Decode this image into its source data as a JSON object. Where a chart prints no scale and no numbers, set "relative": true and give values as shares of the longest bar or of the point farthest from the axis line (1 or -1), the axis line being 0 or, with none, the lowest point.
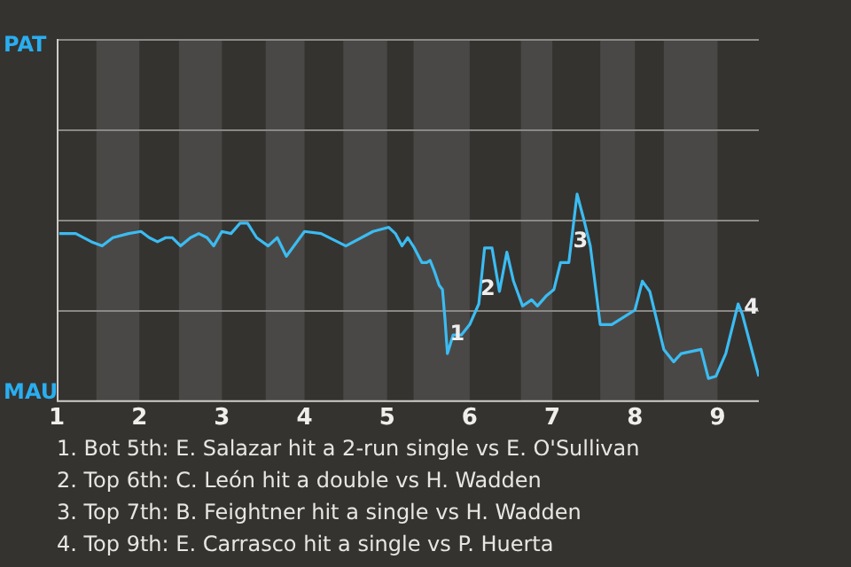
{
  "chart_data": {
    "type": "line",
    "relative": true,
    "xlim": [
      1,
      9.5
    ],
    "xticks": [
      1,
      2,
      3,
      4,
      5,
      6,
      7,
      8,
      9
    ],
    "ref_lines": [
      {
        "axis": "y",
        "value": 0.44,
        "color": "#8b8987"
      },
      {
        "axis": "y",
        "value": 0.88,
        "color": "#8b8987"
      },
      {
        "axis": "y",
        "value": 1.31,
        "color": "#8b8987"
      }
    ],
    "legend": false,
    "marker": "none",
    "line_style": "solid",
    "bands": [
      {
        "axis": "x",
        "from": 1.48,
        "to": 2,
        "color": "#4a4846"
      },
      {
        "axis": "x",
        "from": 2.48,
        "to": 3,
        "color": "#4a4846"
      },
      {
        "axis": "x",
        "from": 3.53,
        "to": 4,
        "color": "#4a4846"
      },
      {
        "axis": "x",
        "from": 4.47,
        "to": 5,
        "color": "#4a4846"
      },
      {
        "axis": "x",
        "from": 5.32,
        "to": 6,
        "color": "#4a4846"
      },
      {
        "axis": "x",
        "from": 6.62,
        "to": 7,
        "color": "#4a4846"
      },
      {
        "axis": "x",
        "from": 7.58,
        "to": 8,
        "color": "#4a4846"
      },
      {
        "axis": "x",
        "from": 8.35,
        "to": 9,
        "color": "#4a4846"
      }
    ],
    "series": [
      {
        "color": "#3bbcf2",
        "x": [
          1.03,
          1.23,
          1.42,
          1.55,
          1.68,
          1.87,
          2.02,
          2.12,
          2.22,
          2.32,
          2.4,
          2.5,
          2.62,
          2.72,
          2.82,
          2.9,
          3.0,
          3.11,
          3.22,
          3.31,
          3.42,
          3.56,
          3.67,
          3.78,
          4.0,
          4.2,
          4.5,
          4.83,
          5.02,
          5.1,
          5.18,
          5.25,
          5.33,
          5.42,
          5.48,
          5.52,
          5.57,
          5.63,
          5.67,
          5.7,
          5.73,
          5.8,
          5.9,
          6.0,
          6.11,
          6.18,
          6.27,
          6.36,
          6.45,
          6.53,
          6.64,
          6.75,
          6.82,
          6.93,
          7.02,
          7.1,
          7.2,
          7.3,
          7.38,
          7.46,
          7.58,
          7.72,
          7.84,
          8.0,
          8.09,
          8.18,
          8.35,
          8.47,
          8.56,
          8.8,
          8.89,
          8.98,
          9.1,
          9.25,
          9.3,
          9.5
        ],
        "values": [
          0.81,
          0.81,
          0.77,
          0.75,
          0.79,
          0.81,
          0.82,
          0.79,
          0.77,
          0.79,
          0.79,
          0.75,
          0.79,
          0.81,
          0.79,
          0.75,
          0.82,
          0.81,
          0.86,
          0.86,
          0.79,
          0.75,
          0.79,
          0.7,
          0.82,
          0.81,
          0.75,
          0.82,
          0.84,
          0.81,
          0.75,
          0.79,
          0.74,
          0.67,
          0.67,
          0.68,
          0.63,
          0.56,
          0.54,
          0.4,
          0.23,
          0.32,
          0.32,
          0.37,
          0.47,
          0.74,
          0.74,
          0.53,
          0.72,
          0.58,
          0.46,
          0.49,
          0.46,
          0.51,
          0.54,
          0.67,
          0.67,
          1,
          0.88,
          0.75,
          0.37,
          0.37,
          0.4,
          0.44,
          0.58,
          0.53,
          0.25,
          0.19,
          0.23,
          0.25,
          0.11,
          0.12,
          0.23,
          0.47,
          0.42,
          0.12
        ]
      }
    ],
    "annotations": [
      {
        "text": "1",
        "x": 5.85,
        "y": 0.32
      },
      {
        "text": "2",
        "x": 6.22,
        "y": 0.54
      },
      {
        "text": "3",
        "x": 7.34,
        "y": 0.77
      },
      {
        "text": "4",
        "x": 9.41,
        "y": 0.45
      },
      "PAT",
      "MAU",
      "1. Bot 5th: E. Salazar hit a 2-run single vs E. O'Sullivan",
      "2. Top 6th: C. León hit a double vs H. Wadden",
      "3. Top 7th: B. Feightner hit a single vs H. Wadden",
      "4. Top 9th: E. Carrasco hit a single vs P. Huerta"
    ]
  }
}
